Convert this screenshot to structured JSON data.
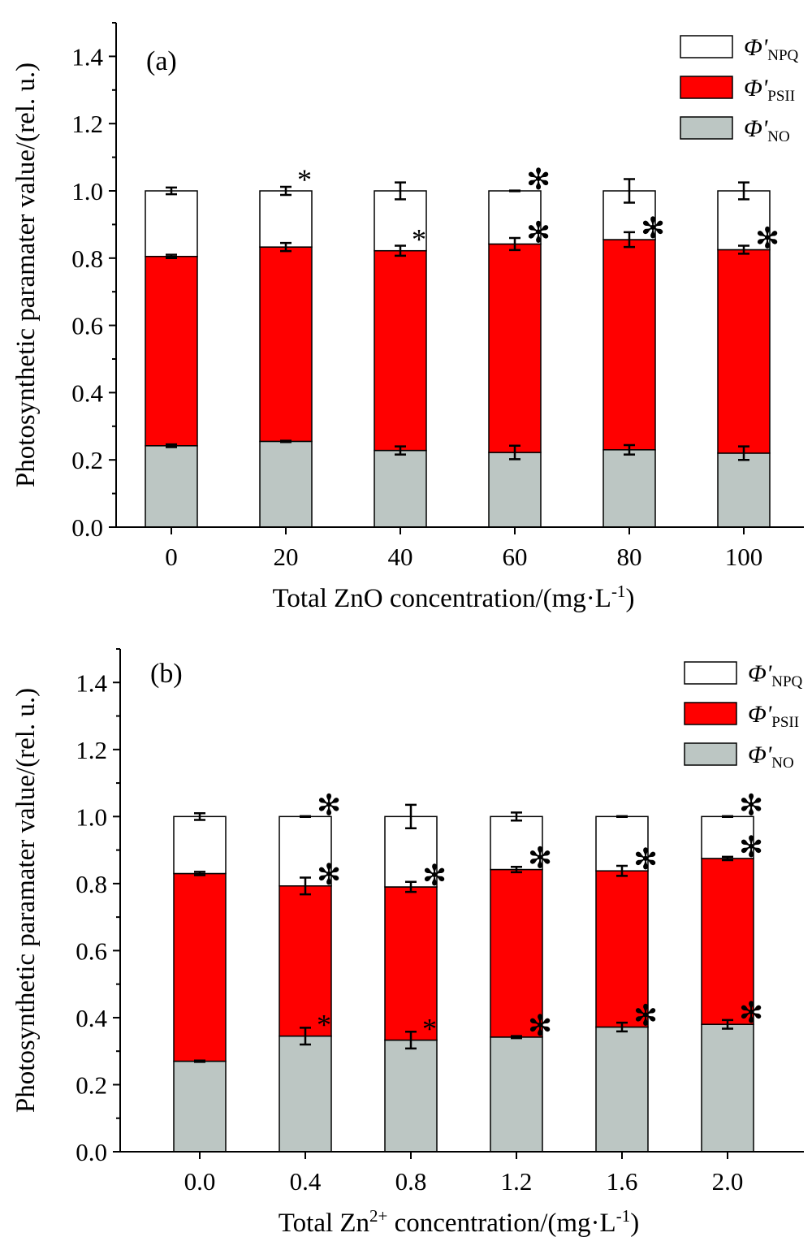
{
  "colors": {
    "npq": "#ffffff",
    "psii": "#ff0000",
    "no": "#bcc6c3"
  },
  "chart_data": [
    {
      "type": "bar",
      "stacked": true,
      "panel_label": "(a)",
      "xlabel_main": "Total ZnO concentration/(mg·L",
      "xlabel_sup": "-1",
      "xlabel_end": ")",
      "ylabel": "Photosynthetic paramater value/(rel. u.)",
      "ylim": [
        0,
        1.5
      ],
      "yticks": [
        "0.0",
        "0.2",
        "0.4",
        "0.6",
        "0.8",
        "1.0",
        "1.2",
        "1.4"
      ],
      "categories": [
        "0",
        "20",
        "40",
        "60",
        "80",
        "100"
      ],
      "legend": [
        {
          "symbol": "Φ'",
          "sub": "NPQ",
          "color_key": "npq"
        },
        {
          "symbol": "Φ'",
          "sub": "PSII",
          "color_key": "psii"
        },
        {
          "symbol": "Φ'",
          "sub": "NO",
          "color_key": "no"
        }
      ],
      "legend_position": "top-right",
      "series": [
        {
          "key": "no",
          "top": [
            0.242,
            0.255,
            0.228,
            0.222,
            0.23,
            0.22
          ],
          "err": [
            0.004,
            0.002,
            0.012,
            0.02,
            0.014,
            0.02
          ],
          "stars": [
            "",
            "",
            "",
            "",
            "",
            ""
          ]
        },
        {
          "key": "psii",
          "top": [
            0.805,
            0.833,
            0.822,
            0.842,
            0.855,
            0.825
          ],
          "err": [
            0.005,
            0.012,
            0.015,
            0.018,
            0.022,
            0.012
          ],
          "stars": [
            "",
            "",
            "*",
            "✻",
            "✻",
            "✻"
          ]
        },
        {
          "key": "npq",
          "top": [
            1.0,
            1.0,
            1.0,
            1.0,
            1.0,
            1.0
          ],
          "err": [
            0.01,
            0.012,
            0.025,
            0.001,
            0.035,
            0.025
          ],
          "stars": [
            "",
            "*",
            "",
            "✻",
            "",
            ""
          ]
        }
      ]
    },
    {
      "type": "bar",
      "stacked": true,
      "panel_label": "(b)",
      "xlabel_main": "Total Zn",
      "xlabel_sup": "2+",
      "xlabel_end": " concentration/(mg·L",
      "xlabel_sup2": "-1",
      "xlabel_end2": ")",
      "ylabel": "Photosynthetic paramater value/(rel. u.)",
      "ylim": [
        0,
        1.5
      ],
      "yticks": [
        "0.0",
        "0.2",
        "0.4",
        "0.6",
        "0.8",
        "1.0",
        "1.2",
        "1.4"
      ],
      "categories": [
        "0.0",
        "0.4",
        "0.8",
        "1.2",
        "1.6",
        "2.0"
      ],
      "legend": [
        {
          "symbol": "Φ'",
          "sub": "NPQ",
          "color_key": "npq"
        },
        {
          "symbol": "Φ'",
          "sub": "PSII",
          "color_key": "psii"
        },
        {
          "symbol": "Φ'",
          "sub": "NO",
          "color_key": "no"
        }
      ],
      "legend_position": "top-right",
      "series": [
        {
          "key": "no",
          "top": [
            0.27,
            0.345,
            0.333,
            0.342,
            0.372,
            0.38
          ],
          "err": [
            0.002,
            0.025,
            0.025,
            0.003,
            0.013,
            0.013
          ],
          "stars": [
            "",
            "*",
            "*",
            "✻",
            "✻",
            "✻"
          ]
        },
        {
          "key": "psii",
          "top": [
            0.83,
            0.793,
            0.79,
            0.842,
            0.838,
            0.875
          ],
          "err": [
            0.005,
            0.025,
            0.015,
            0.008,
            0.015,
            0.005
          ],
          "stars": [
            "",
            "✻",
            "✻",
            "✻",
            "✻",
            "✻"
          ]
        },
        {
          "key": "npq",
          "top": [
            1.0,
            1.0,
            1.0,
            1.0,
            1.0,
            1.0
          ],
          "err": [
            0.01,
            0.001,
            0.035,
            0.012,
            0.001,
            0.001
          ],
          "stars": [
            "",
            "✻",
            "",
            "",
            "",
            "✻"
          ]
        }
      ]
    }
  ]
}
